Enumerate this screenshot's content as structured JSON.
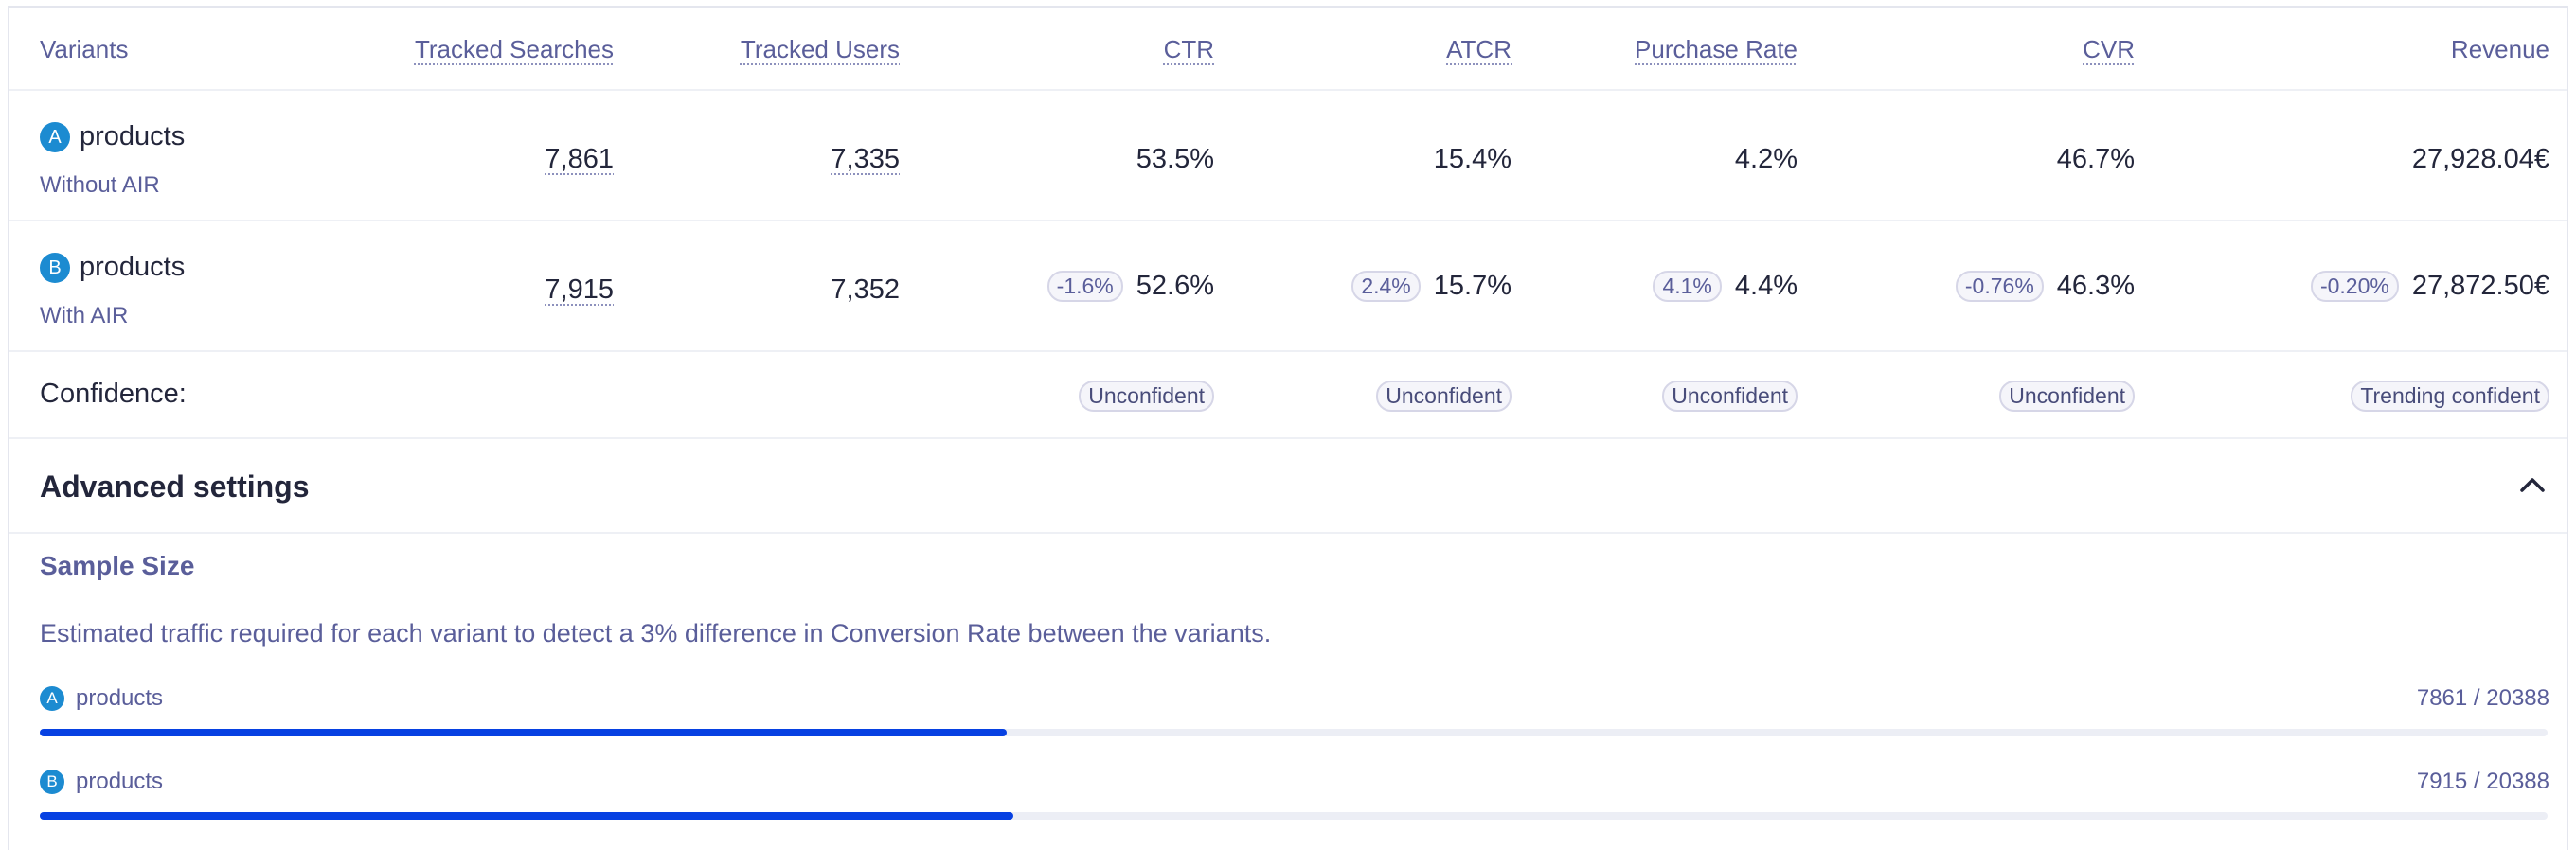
{
  "header": {
    "variants": "Variants",
    "tracked_searches": "Tracked Searches",
    "tracked_users": "Tracked Users",
    "ctr": "CTR",
    "atcr": "ATCR",
    "purchase_rate": "Purchase Rate",
    "cvr": "CVR",
    "revenue": "Revenue"
  },
  "variants": [
    {
      "letter": "A",
      "name": "products",
      "sub": "Without AIR",
      "tracked_searches": "7,861",
      "tracked_users": "7,335",
      "ctr": "53.5%",
      "atcr": "15.4%",
      "purchase_rate": "4.2%",
      "cvr": "46.7%",
      "revenue": "27,928.04€"
    },
    {
      "letter": "B",
      "name": "products",
      "sub": "With AIR",
      "tracked_searches": "7,915",
      "tracked_users": "7,352",
      "ctr": "52.6%",
      "ctr_delta": "-1.6%",
      "atcr": "15.7%",
      "atcr_delta": "2.4%",
      "purchase_rate": "4.4%",
      "purchase_rate_delta": "4.1%",
      "cvr": "46.3%",
      "cvr_delta": "-0.76%",
      "revenue": "27,872.50€",
      "revenue_delta": "-0.20%"
    }
  ],
  "confidence": {
    "label": "Confidence:",
    "ctr": "Unconfident",
    "atcr": "Unconfident",
    "purchase_rate": "Unconfident",
    "cvr": "Unconfident",
    "revenue": "Trending confident"
  },
  "advanced": {
    "title": "Advanced settings",
    "toggle_icon": "chevron-up-icon",
    "sample_size_title": "Sample Size",
    "description": "Estimated traffic required for each variant to detect a 3% difference in Conversion Rate between the variants.",
    "progress": [
      {
        "letter": "A",
        "name": "products",
        "count_text": "7861 / 20388",
        "current": 7861,
        "target": 20388
      },
      {
        "letter": "B",
        "name": "products",
        "count_text": "7915 / 20388",
        "current": 7915,
        "target": 20388
      }
    ]
  },
  "colors": {
    "accent": "#0741e2",
    "variant_badge": "#1c8bd1",
    "muted_text": "#5a5e9a"
  }
}
